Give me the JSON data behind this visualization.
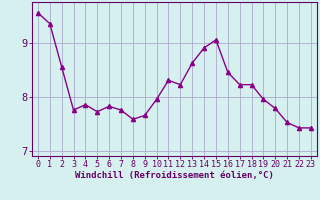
{
  "x_values": [
    0,
    1,
    2,
    3,
    4,
    5,
    6,
    7,
    8,
    9,
    10,
    11,
    12,
    13,
    14,
    15,
    16,
    17,
    18,
    19,
    20,
    21,
    22,
    23
  ],
  "y_values": [
    9.55,
    9.35,
    8.55,
    7.75,
    7.85,
    7.72,
    7.82,
    7.75,
    7.58,
    7.65,
    7.95,
    8.3,
    8.22,
    8.62,
    8.9,
    9.05,
    8.45,
    8.22,
    8.22,
    7.95,
    7.78,
    7.52,
    7.42,
    7.42
  ],
  "line_color": "#880088",
  "marker": "^",
  "marker_size": 3,
  "marker_linewidth": 1.0,
  "line_width": 1.0,
  "xlabel": "Windchill (Refroidissement éolien,°C)",
  "xlim": [
    -0.5,
    23.5
  ],
  "ylim": [
    6.9,
    9.75
  ],
  "yticks": [
    7,
    8,
    9
  ],
  "xtick_labels": [
    "0",
    "1",
    "2",
    "3",
    "4",
    "5",
    "6",
    "7",
    "8",
    "9",
    "10",
    "11",
    "12",
    "13",
    "14",
    "15",
    "16",
    "17",
    "18",
    "19",
    "20",
    "21",
    "22",
    "23"
  ],
  "bg_color": "#d6f0f0",
  "grid_color": "#aaaacc",
  "tick_color": "#660066",
  "label_color": "#660066",
  "xlabel_fontsize": 6.5,
  "tick_fontsize": 6.0
}
